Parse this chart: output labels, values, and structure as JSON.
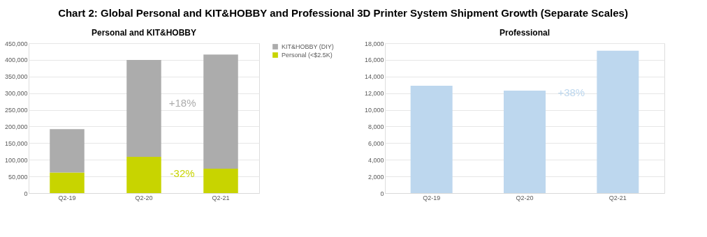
{
  "chart_data": [
    {
      "type": "other",
      "title": "Chart 2: Global Personal and KIT&HOBBY and Professional 3D Printer System Shipment Growth (Separate Scales)"
    },
    {
      "type": "bar",
      "title": "Personal and KIT&HOBBY",
      "categories": [
        "Q2-19",
        "Q2-20",
        "Q2-21"
      ],
      "stacked": true,
      "series": [
        {
          "name": "Personal (<$2.5K)",
          "color": "#c8d400",
          "values": [
            62000,
            109000,
            73000
          ]
        },
        {
          "name": "KIT&HOBBY (DIY)",
          "color": "#acacac",
          "values": [
            130000,
            291000,
            343000
          ]
        }
      ],
      "ylim": [
        0,
        450000
      ],
      "yticks": [
        0,
        {
          "value": 50000,
          "label": "50,000"
        },
        {
          "value": 100000,
          "label": "100,000"
        },
        {
          "value": 150000,
          "label": "150,000"
        },
        {
          "value": 200000,
          "label": "200,000"
        },
        {
          "value": 250000,
          "label": "250,000"
        },
        {
          "value": 300000,
          "label": "300,000"
        },
        {
          "value": 350000,
          "label": "350,000"
        },
        {
          "value": 400000,
          "label": "400,000"
        },
        {
          "value": 450000,
          "label": "450,000"
        }
      ],
      "grid": "y",
      "legend": "right",
      "annotations": [
        "+18%",
        "-32%"
      ]
    },
    {
      "type": "bar",
      "title": "Professional",
      "categories": [
        "Q2-19",
        "Q2-20",
        "Q2-21"
      ],
      "series": [
        {
          "color": "#bdd7ee",
          "values": [
            12900,
            12300,
            17100
          ]
        }
      ],
      "ylim": [
        0,
        18000
      ],
      "yticks": [
        0,
        {
          "value": 2000,
          "label": "2,000"
        },
        {
          "value": 4000,
          "label": "4,000"
        },
        {
          "value": 6000,
          "label": "6,000"
        },
        {
          "value": 8000,
          "label": "8,000"
        },
        {
          "value": 10000,
          "label": "10,000"
        },
        {
          "value": 12000,
          "label": "12,000"
        },
        {
          "value": 14000,
          "label": "14,000"
        },
        {
          "value": 16000,
          "label": "16,000"
        },
        {
          "value": 18000,
          "label": "18,000"
        }
      ],
      "grid": "y",
      "annotations": [
        "+38%"
      ]
    }
  ]
}
